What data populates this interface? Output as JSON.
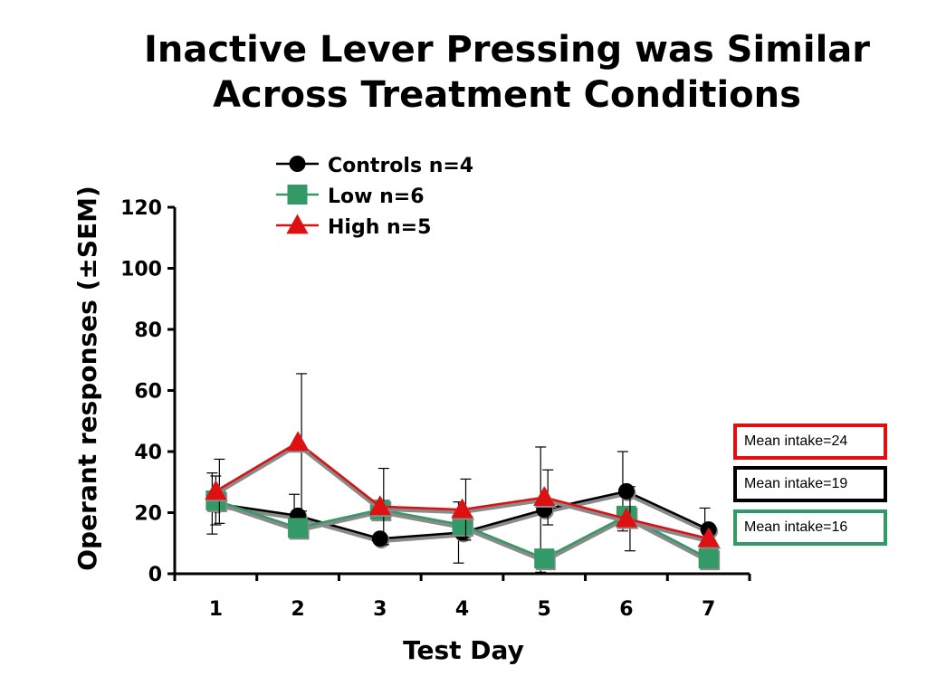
{
  "title_lines": [
    "Inactive Lever Pressing was Similar",
    "Across Treatment Conditions"
  ],
  "chart_data": {
    "type": "line",
    "title": "Inactive Lever Pressing was Similar Across Treatment Conditions",
    "xlabel": "Test Day",
    "ylabel_prefix": "Operant responses (",
    "ylabel_pm": "±",
    "ylabel_suffix": "SEM)",
    "x": [
      1,
      2,
      3,
      4,
      5,
      6,
      7
    ],
    "ylim": [
      0,
      120
    ],
    "yticks": [
      0,
      20,
      40,
      60,
      80,
      100,
      120
    ],
    "grid": false,
    "legend_position": "top-center",
    "series": [
      {
        "name": "Controls n=4",
        "marker": "circle",
        "color": "#000000",
        "values": [
          23,
          19,
          11.5,
          13.5,
          21,
          27,
          14.5
        ],
        "sem": [
          10,
          7,
          0,
          10,
          20.5,
          13,
          7
        ]
      },
      {
        "name": "Low n=6",
        "marker": "square",
        "color": "#339966",
        "values": [
          24,
          15,
          21,
          16,
          5,
          19,
          5
        ],
        "sem": [
          8,
          3,
          0,
          0,
          0,
          0,
          0
        ]
      },
      {
        "name": "High n=5",
        "marker": "triangle",
        "color": "#dd1111",
        "values": [
          27,
          43,
          22,
          21,
          25,
          18,
          11.5
        ],
        "sem": [
          10.5,
          22.5,
          12.5,
          10,
          9,
          10.5,
          0
        ]
      }
    ]
  },
  "intake_boxes": [
    {
      "label": "Mean intake=24",
      "color": "#dd1111"
    },
    {
      "label": "Mean intake=19",
      "color": "#000000"
    },
    {
      "label": "Mean intake=16",
      "color": "#339966"
    }
  ]
}
